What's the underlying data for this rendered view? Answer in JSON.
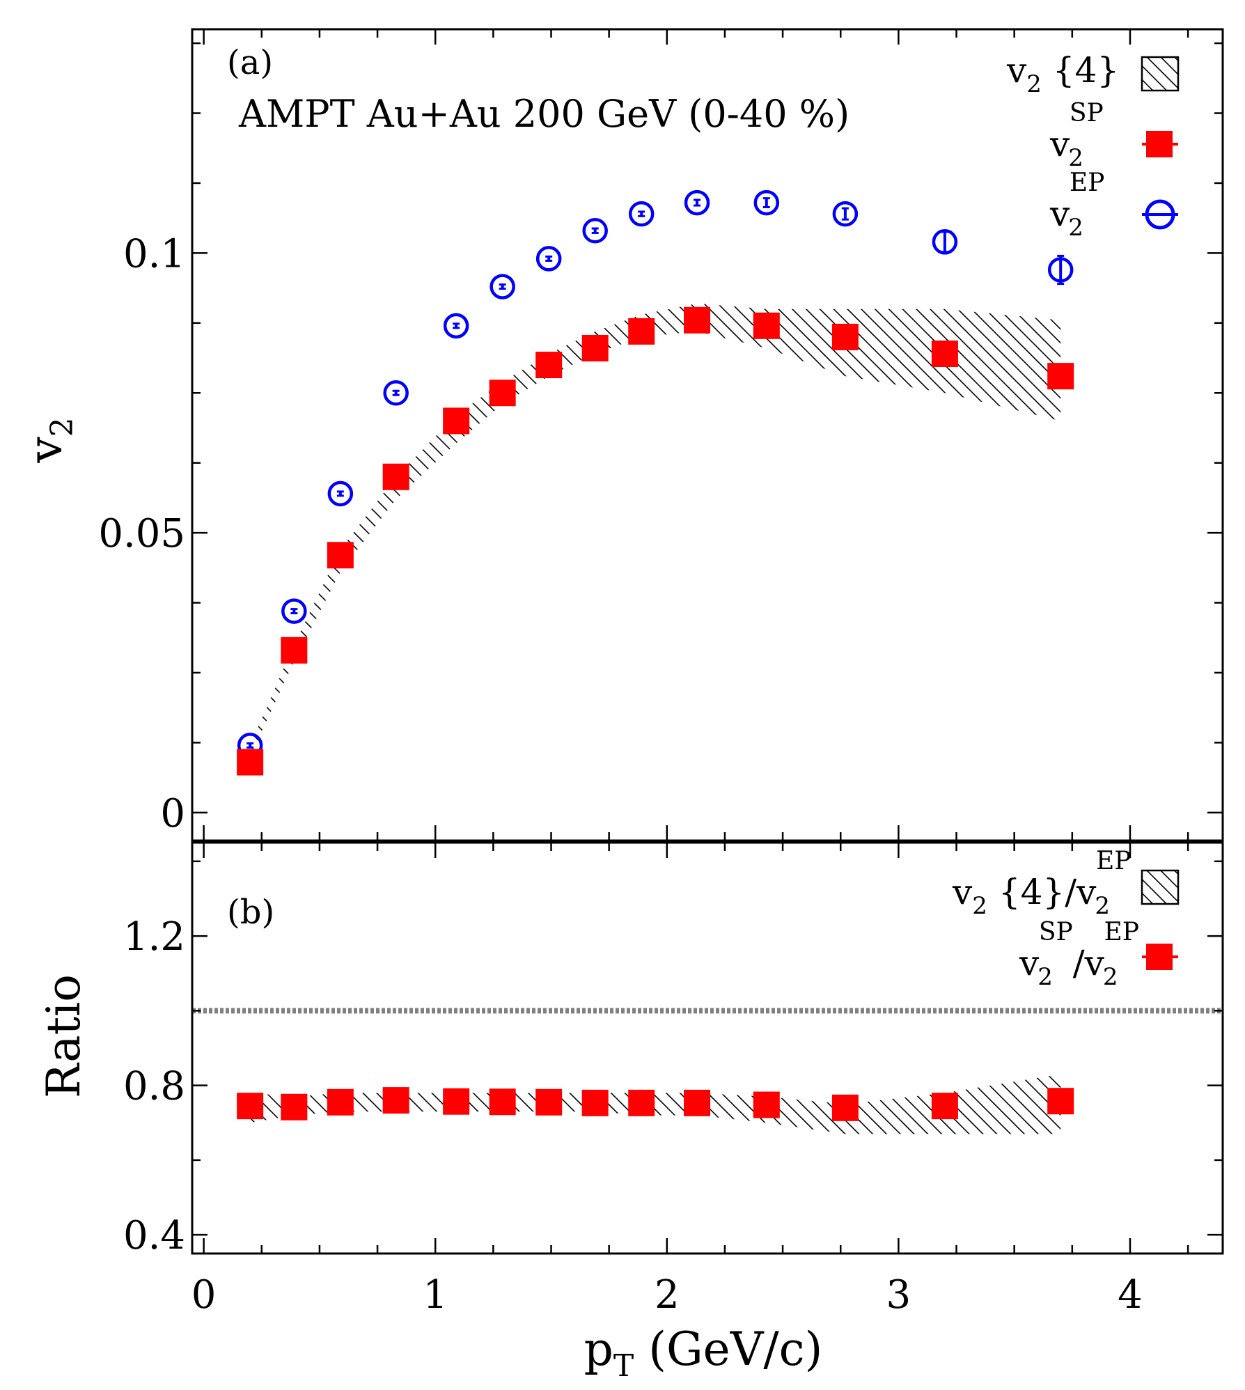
{
  "colors": {
    "sp": "#ff0000",
    "ep": "#0000ff",
    "band": "#000000",
    "unity": "#808080"
  },
  "chart_data": [
    {
      "panel": "(a)",
      "type": "scatter",
      "title": "AMPT Au+Au 200 GeV (0-40 %)",
      "xlabel": "p_T (GeV/c)",
      "ylabel": "v_2",
      "xlim": [
        -0.05,
        4.4
      ],
      "ylim": [
        -0.005,
        0.14
      ],
      "yticks": [
        "0",
        "0.05",
        "0.1"
      ],
      "ytick_values": [
        0,
        0.05,
        0.1
      ],
      "legend_position": "top-right",
      "legend": [
        {
          "base": "v",
          "sub": "2",
          "rest": " {4}"
        },
        {
          "base": "v",
          "sub": "2",
          "sup": "SP"
        },
        {
          "base": "v",
          "sub": "2",
          "sup": "EP"
        }
      ],
      "x": [
        0.2,
        0.39,
        0.59,
        0.83,
        1.09,
        1.29,
        1.49,
        1.69,
        1.89,
        2.13,
        2.43,
        2.77,
        3.2,
        3.7
      ],
      "series": [
        {
          "name": "v2 {4}",
          "style": "hatched-band",
          "lower": [
            0.01,
            0.027,
            0.043,
            0.056,
            0.066,
            0.073,
            0.078,
            0.082,
            0.085,
            0.086,
            0.083,
            0.078,
            0.075,
            0.07
          ],
          "upper": [
            0.012,
            0.03,
            0.047,
            0.06,
            0.071,
            0.077,
            0.082,
            0.086,
            0.089,
            0.091,
            0.09,
            0.09,
            0.09,
            0.088
          ]
        },
        {
          "name": "v2 SP",
          "style": "filled-square",
          "values": [
            0.009,
            0.029,
            0.046,
            0.06,
            0.07,
            0.075,
            0.08,
            0.083,
            0.086,
            0.088,
            0.087,
            0.085,
            0.082,
            0.078
          ]
        },
        {
          "name": "v2 EP",
          "style": "open-circle",
          "values": [
            0.012,
            0.036,
            0.057,
            0.075,
            0.087,
            0.094,
            0.099,
            0.104,
            0.107,
            0.109,
            0.109,
            0.107,
            0.102,
            0.097
          ],
          "errors": [
            0.0002,
            0.0003,
            0.0003,
            0.0003,
            0.0003,
            0.0003,
            0.0003,
            0.0004,
            0.0004,
            0.0005,
            0.0008,
            0.001,
            0.0018,
            0.0025
          ]
        }
      ]
    },
    {
      "panel": "(b)",
      "type": "scatter",
      "xlabel": "p_T (GeV/c)",
      "ylabel": "Ratio",
      "xlim": [
        -0.05,
        4.4
      ],
      "ylim": [
        0.35,
        1.45
      ],
      "yticks": [
        "0.4",
        "0.8",
        "1.2"
      ],
      "ytick_values": [
        0.4,
        0.8,
        1.2
      ],
      "xticks": [
        "0",
        "1",
        "2",
        "3",
        "4"
      ],
      "xtick_values": [
        0,
        1,
        2,
        3,
        4
      ],
      "reference_line": 1.0,
      "legend_position": "top-right",
      "legend": [
        {
          "base": "v",
          "sub": "2",
          "rest": " {4}/",
          "base2": "v",
          "sub2": "2",
          "sup2": "EP"
        },
        {
          "base": "v",
          "sub": "2",
          "sup": "SP",
          "rest": "/",
          "base2": "v",
          "sub2": "2",
          "sup2": "EP"
        }
      ],
      "x": [
        0.2,
        0.39,
        0.59,
        0.83,
        1.09,
        1.29,
        1.49,
        1.69,
        1.89,
        2.13,
        2.43,
        2.77,
        3.2,
        3.7
      ],
      "series": [
        {
          "name": "v2 {4}/v2 EP",
          "style": "hatched-band",
          "lower": [
            0.7,
            0.72,
            0.73,
            0.73,
            0.73,
            0.73,
            0.73,
            0.73,
            0.72,
            0.72,
            0.7,
            0.67,
            0.67,
            0.67
          ],
          "upper": [
            0.78,
            0.77,
            0.78,
            0.78,
            0.78,
            0.78,
            0.78,
            0.78,
            0.78,
            0.78,
            0.77,
            0.75,
            0.78,
            0.83
          ]
        },
        {
          "name": "v2 SP/v2 EP",
          "style": "filled-square",
          "values": [
            0.745,
            0.742,
            0.755,
            0.76,
            0.757,
            0.756,
            0.755,
            0.753,
            0.753,
            0.753,
            0.748,
            0.74,
            0.745,
            0.758
          ]
        }
      ]
    }
  ]
}
